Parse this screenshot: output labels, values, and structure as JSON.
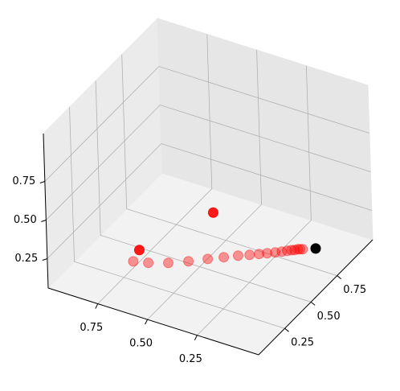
{
  "chart_data": {
    "type": "scatter3d",
    "xlim": [
      -0.06,
      1.0
    ],
    "ylim": [
      0,
      1.09
    ],
    "zlim": [
      0.06,
      1.06
    ],
    "xticks": [
      0.25,
      {
        "value": 0.5,
        "label": "0.50"
      },
      0.75
    ],
    "yticks": [
      0.25,
      {
        "value": 0.5,
        "label": "0.50"
      },
      0.75
    ],
    "zticks": [
      0.25,
      {
        "value": 0.5,
        "label": "0.50"
      },
      0.75
    ],
    "grid": true,
    "series": [
      {
        "color": "#ff0000",
        "alpha": 0.4,
        "x": [
          0.63,
          0.567,
          0.49,
          0.419,
          0.354,
          0.299,
          0.25,
          0.209,
          0.176,
          0.148,
          0.12,
          0.098,
          0.08,
          0.067,
          0.055,
          0.046,
          0.037,
          0.027
        ],
        "y": [
          0.122,
          0.146,
          0.191,
          0.249,
          0.31,
          0.359,
          0.403,
          0.435,
          0.463,
          0.487,
          0.511,
          0.532,
          0.55,
          0.565,
          0.573,
          0.586,
          0.591,
          0.597
        ],
        "z": [
          0.3,
          0.3,
          0.3,
          0.3,
          0.3,
          0.3,
          0.3,
          0.3,
          0.3,
          0.3,
          0.3,
          0.3,
          0.3,
          0.3,
          0.3,
          0.3,
          0.3,
          0.3
        ]
      },
      {
        "color": "#ff0000",
        "alpha": 0.9,
        "x": [
          0.65,
          0.388
        ],
        "y": [
          0.218,
          0.436
        ],
        "z": [
          0.3,
          0.5
        ]
      },
      {
        "color": "#000000",
        "alpha": 1,
        "x": [
          -0.02
        ],
        "y": [
          0.632
        ],
        "z": [
          0.3
        ]
      }
    ]
  }
}
